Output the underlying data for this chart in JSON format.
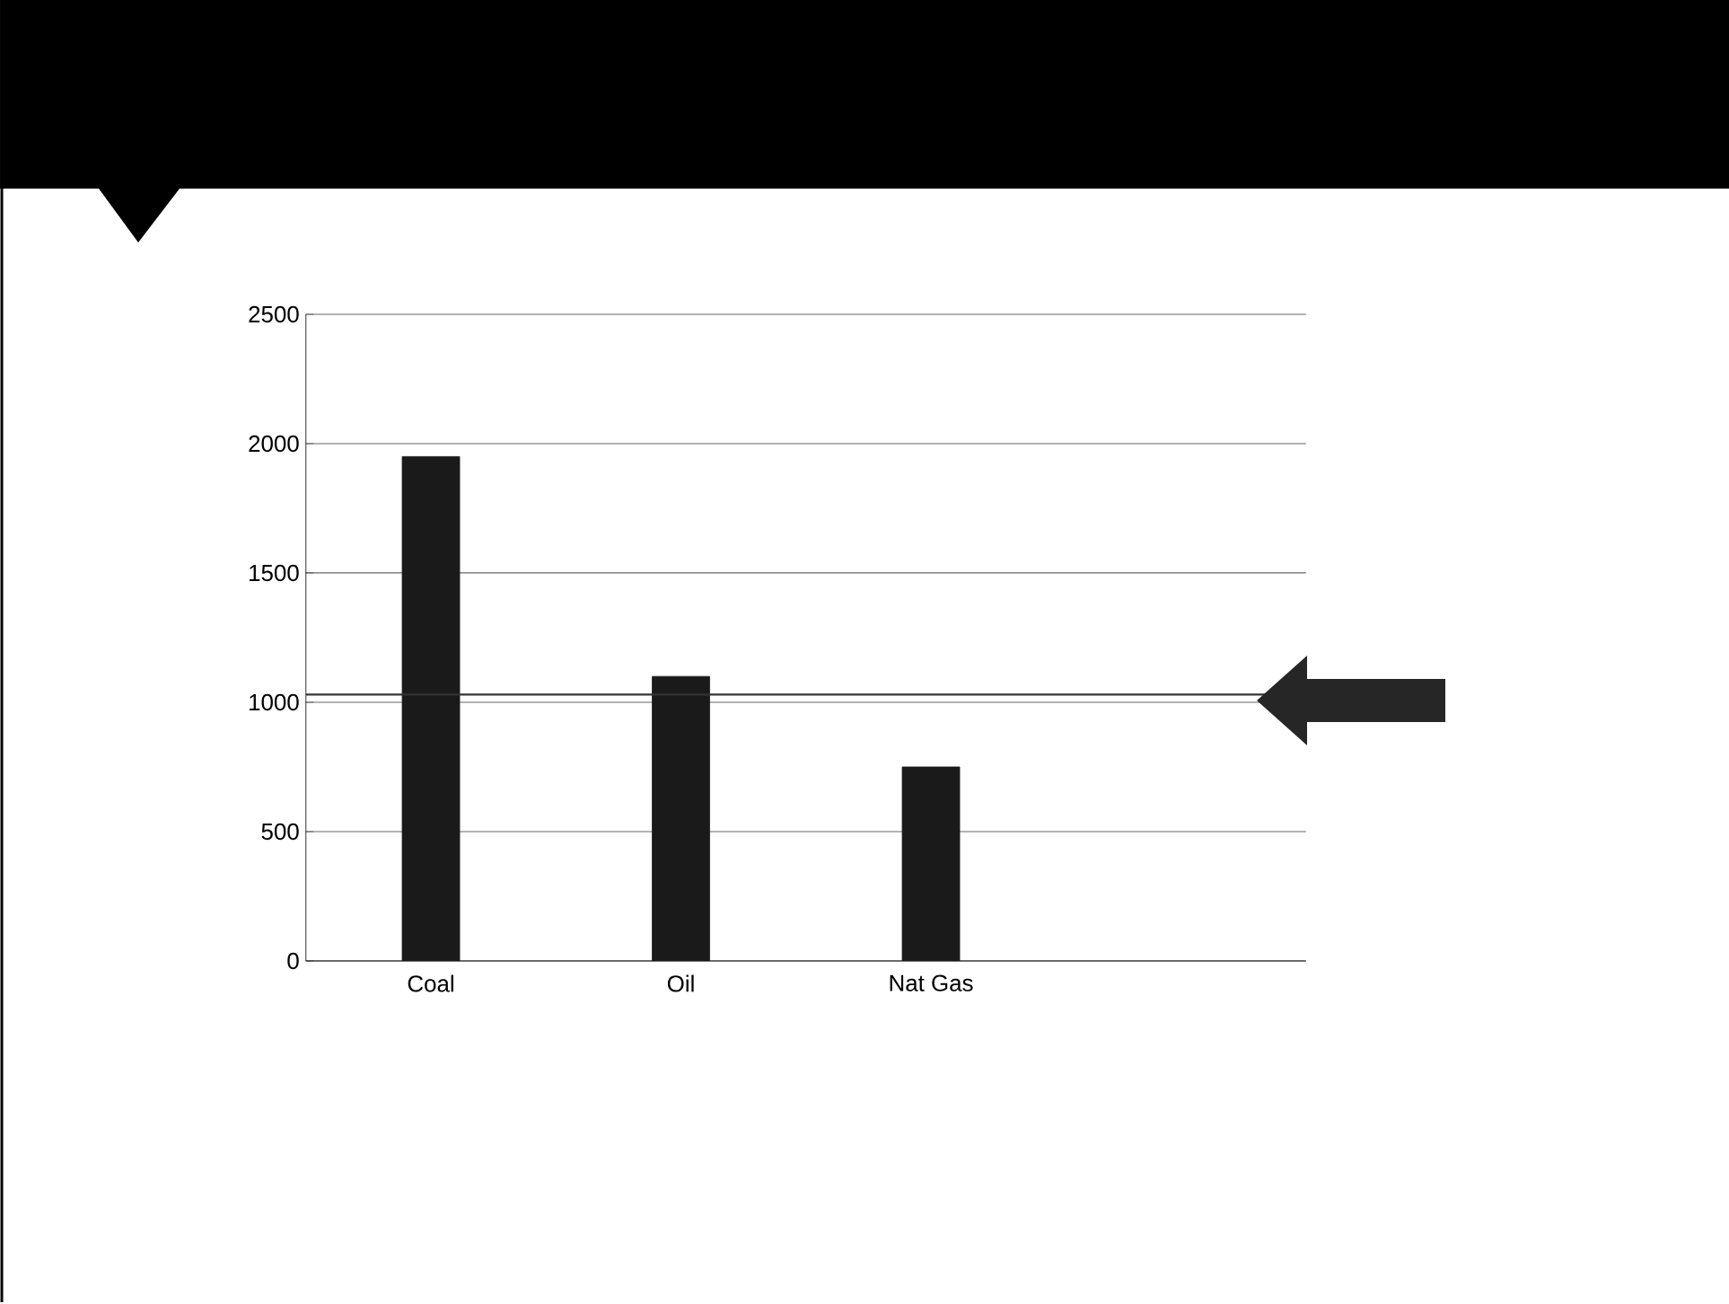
{
  "chart_data": {
    "type": "bar",
    "categories": [
      "Coal",
      "Oil",
      "Nat Gas",
      null
    ],
    "values": [
      1950,
      1100,
      750,
      null
    ],
    "color": "#1a1a1a",
    "ylim": [
      0,
      2500
    ],
    "yticks": [
      0,
      500,
      1000,
      1500,
      2000,
      2500
    ],
    "grid": "y",
    "ref_lines": [
      {
        "axis": "y",
        "value": 1030,
        "color": "#333333"
      }
    ]
  }
}
